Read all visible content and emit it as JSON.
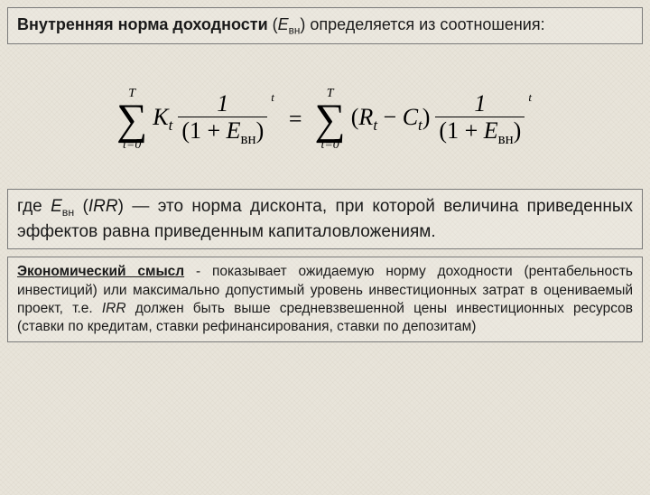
{
  "header": {
    "title_bold": "Внутренняя норма доходности",
    "title_rest": " (",
    "title_var": "Е",
    "title_sub": "вн",
    "title_after": ") определяется из соотношения:"
  },
  "formula": {
    "sum_upper": "T",
    "sum_lower": "t=0",
    "K": "K",
    "K_sub": "t",
    "frac_num": "1",
    "den_open": "(1 + ",
    "den_var": "E",
    "den_sub": "вн",
    "den_close": ")",
    "power": "t",
    "equals": "=",
    "paren_open": "(",
    "R": "R",
    "R_sub": "t",
    "minus": " − ",
    "C": "C",
    "C_sub": "t",
    "paren_close": ")"
  },
  "description": {
    "pre": "где ",
    "var": "Е",
    "var_sub": "вн",
    "irr_open": " (",
    "irr": "IRR",
    "irr_close": ")",
    "text": " — это норма дисконта, при которой величина приведенных эффектов равна приведенным капиталовложениям."
  },
  "economic": {
    "label": "Экономический смысл",
    "body_a": " - показывает ожидаемую норму доходности (рентабельность инвестиций) или максимально допустимый уровень инвестиционных затрат в оцениваемый проект, т.е. ",
    "irr": "IRR",
    "body_b": " должен быть выше средневзвешенной цены инвестиционных ресурсов (ставки по кредитам, ставки рефинансирования, ставки по депозитам)"
  },
  "style": {
    "background_color": "#e8e4da",
    "border_color": "#7a7a7a",
    "text_color": "#1a1a1a",
    "formula_font": "Times New Roman",
    "body_font": "Trebuchet MS",
    "title_fontsize": 18,
    "desc_fontsize": 19,
    "econ_fontsize": 15.5,
    "formula_fontsize": 26
  }
}
